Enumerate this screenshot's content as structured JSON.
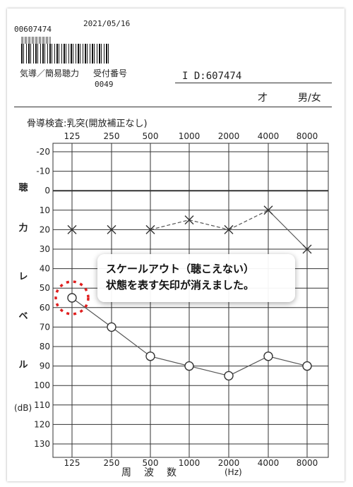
{
  "header": {
    "record_no": "00607474",
    "date": "2021/05/16",
    "dept": "気導／簡易聴力",
    "reception_label": "受付番号",
    "reception_no": "0049",
    "patient_id": "I D:607474",
    "age_unit": "才",
    "sex": "男/女"
  },
  "chart_data": {
    "type": "line",
    "title": "骨導検査:乳突(開放補正なし)",
    "xlabel": "周　波　数",
    "xunit": "(Hz)",
    "ylabel_chars": [
      "聴",
      "力",
      "レ",
      "ベ",
      "ル"
    ],
    "yunit": "(dB)",
    "categories": [
      "125",
      "250",
      "500",
      "1000",
      "2000",
      "4000",
      "8000"
    ],
    "y_ticks": [
      "-20",
      "-10",
      "0",
      "10",
      "20",
      "30",
      "40",
      "50",
      "60",
      "70",
      "80",
      "90",
      "100",
      "110",
      "120",
      "130"
    ],
    "ylim": [
      -20,
      130
    ],
    "y_inverted": true,
    "grid": true,
    "series": [
      {
        "marker": "x",
        "values": [
          20,
          20,
          20,
          15,
          20,
          10,
          30
        ],
        "line_styles": [
          "none",
          "none",
          "dashed",
          "dashed",
          "dashed",
          "solid"
        ]
      },
      {
        "marker": "o",
        "values": [
          55,
          70,
          85,
          90,
          95,
          85,
          90
        ],
        "line_styles": [
          "solid",
          "solid",
          "solid",
          "solid",
          "solid",
          "solid"
        ]
      }
    ],
    "highlight": {
      "category": "125",
      "value": 55,
      "color": "#e02020",
      "style": "dashed-circle"
    },
    "colors": {
      "grid": "#333333",
      "line": "#555555",
      "marker": "#333333"
    }
  },
  "annotation": {
    "line1": "スケールアウト（聴こえない）",
    "line2": "状態を表す矢印が消えました。"
  }
}
